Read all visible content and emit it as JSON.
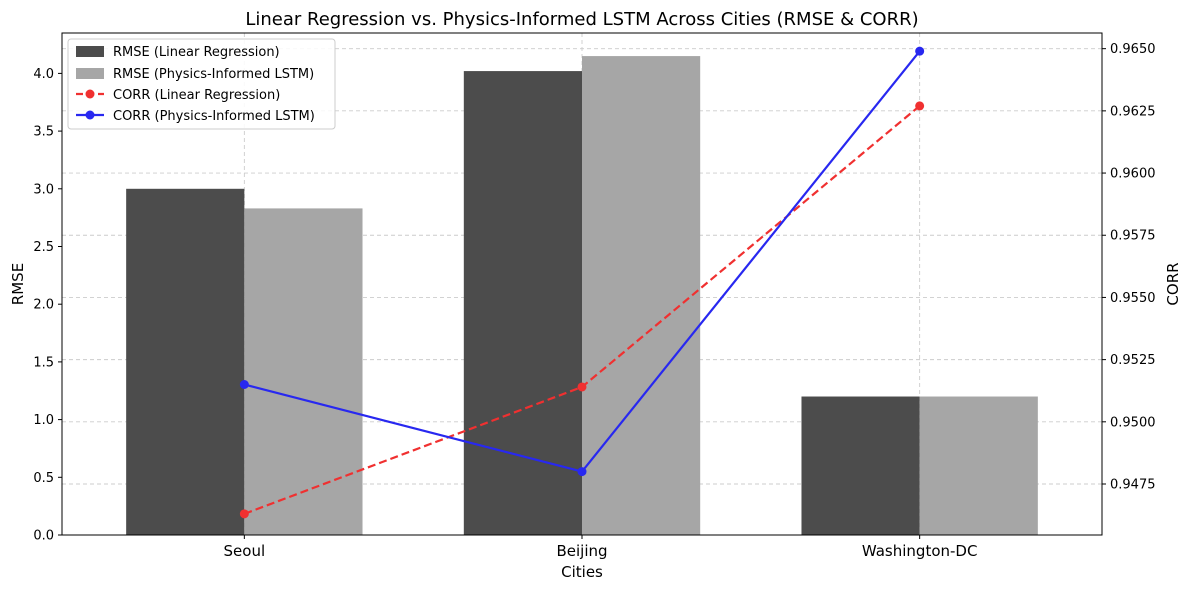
{
  "chart_data": {
    "type": "bar",
    "title": "Linear Regression vs. Physics-Informed LSTM Across Cities (RMSE & CORR)",
    "xlabel": "Cities",
    "ylabel": "RMSE",
    "y2label": "CORR",
    "categories": [
      "Seoul",
      "Beijing",
      "Washington-DC"
    ],
    "ylim": [
      0,
      4.35
    ],
    "yticks": [
      0.0,
      0.5,
      1.0,
      1.5,
      2.0,
      2.5,
      3.0,
      3.5,
      4.0
    ],
    "ytick_labels": [
      "0.0",
      "0.5",
      "1.0",
      "1.5",
      "2.0",
      "2.5",
      "3.0",
      "3.5",
      "4.0"
    ],
    "y2lim": [
      0.94545,
      0.96563
    ],
    "y2ticks": [
      0.9475,
      0.95,
      0.9525,
      0.955,
      0.9575,
      0.96,
      0.9625,
      0.965
    ],
    "y2tick_labels": [
      "0.9475",
      "0.9500",
      "0.9525",
      "0.9550",
      "0.9575",
      "0.9600",
      "0.9625",
      "0.9650"
    ],
    "grid": true,
    "legend_position": "top-left",
    "series": [
      {
        "name": "RMSE (Linear Regression)",
        "kind": "bar",
        "axis": "left",
        "color": "#4c4c4c",
        "values": [
          3.0,
          4.02,
          1.2
        ]
      },
      {
        "name": "RMSE (Physics-Informed LSTM)",
        "kind": "bar",
        "axis": "left",
        "color": "#a6a6a6",
        "values": [
          2.83,
          4.15,
          1.2
        ]
      },
      {
        "name": "CORR (Linear Regression)",
        "kind": "line",
        "style": "dashed",
        "axis": "right",
        "color": "#f03030",
        "values": [
          0.9463,
          0.9514,
          0.9627
        ]
      },
      {
        "name": "CORR (Physics-Informed LSTM)",
        "kind": "line",
        "style": "solid",
        "axis": "right",
        "color": "#2828f0",
        "values": [
          0.9515,
          0.948,
          0.9649
        ]
      }
    ]
  }
}
